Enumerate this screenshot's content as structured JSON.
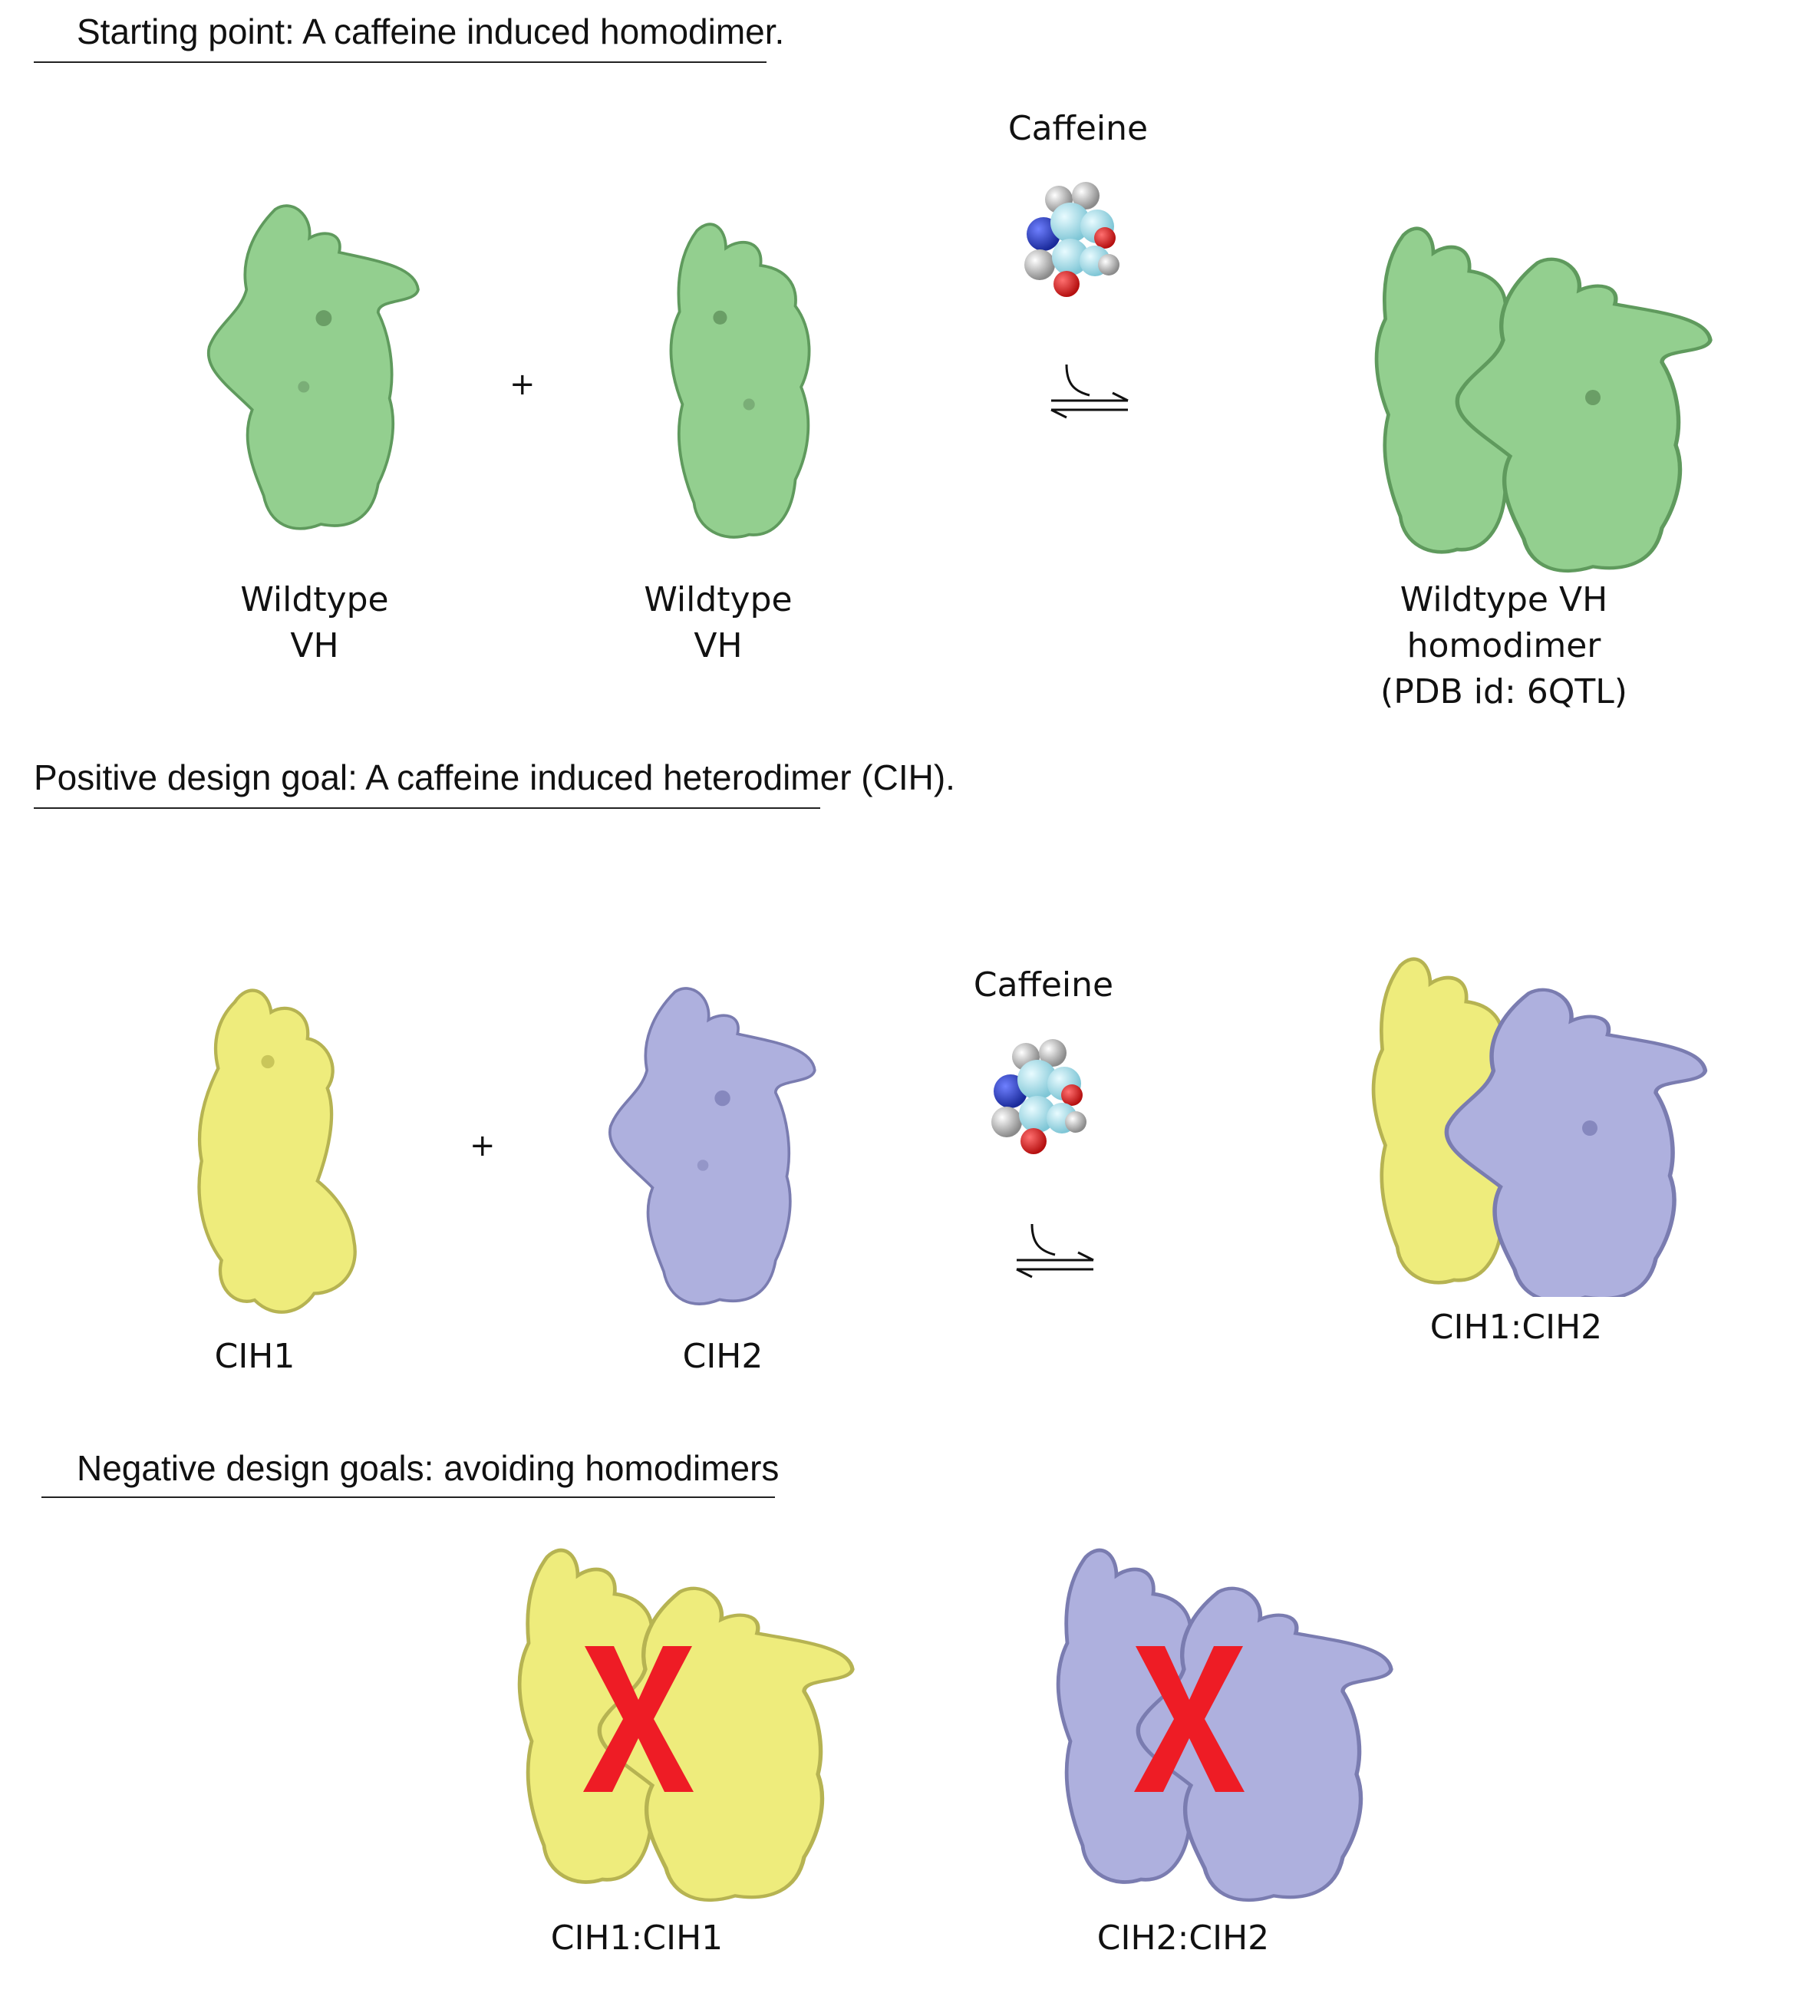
{
  "colors": {
    "wildtype": "#93cf8f",
    "cih1": "#eeec7c",
    "cih2": "#aeb0de",
    "cross": "#ee1c25"
  },
  "section1": {
    "heading": "Starting point: A caffeine induced homodimer.",
    "caffeine_label": "Caffeine",
    "left_label_line1": "Wildtype",
    "left_label_line2": "VH",
    "mid_label_line1": "Wildtype",
    "mid_label_line2": "VH",
    "product_label_line1": "Wildtype VH",
    "product_label_line2": "homodimer",
    "product_label_line3": "(PDB id: 6QTL)",
    "plus": "+"
  },
  "section2": {
    "heading": "Positive design goal: A caffeine induced heterodimer (CIH).",
    "caffeine_label": "Caffeine",
    "left_label": "CIH1",
    "mid_label": "CIH2",
    "product_label": "CIH1:CIH2",
    "plus": "+"
  },
  "section3": {
    "heading": "Negative design goals: avoiding homodimers",
    "left_label": "CIH1:CIH1",
    "right_label": "CIH2:CIH2"
  }
}
